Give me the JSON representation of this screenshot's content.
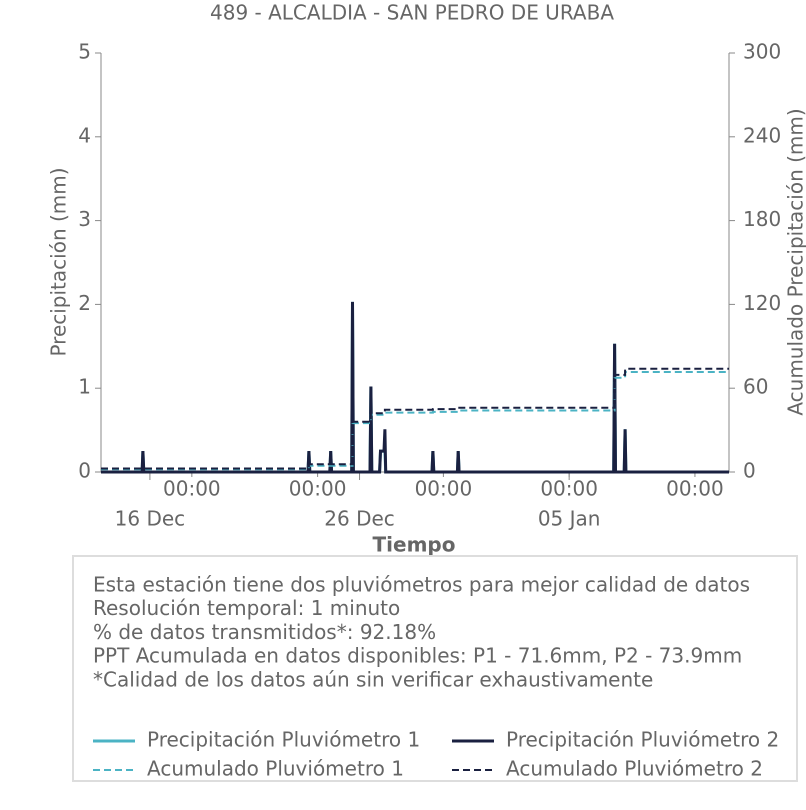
{
  "chart_data": {
    "type": "line",
    "title": "489 - ALCALDIA - SAN PEDRO DE URABA",
    "xlabel": "Tiempo",
    "ylabel": "Precipitación (mm)",
    "y2label": "Acumulado Precipitación (mm)",
    "x": [
      "13 Dec 16:00",
      "15 Dec 15:00",
      "15 Dec 16:00",
      "15 Dec 17:00",
      "23 Dec 13:00",
      "23 Dec 14:00",
      "23 Dec 15:00",
      "24 Dec 14:00",
      "24 Dec 15:00",
      "24 Dec 16:00",
      "25 Dec 15:00",
      "25 Dec 16:00",
      "25 Dec 17:00",
      "26 Dec 12:00",
      "26 Dec 13:00",
      "26 Dec 14:00",
      "26 Dec 23:00",
      "27 Dec 00:00",
      "27 Dec 04:00",
      "27 Dec 05:00",
      "27 Dec 06:00",
      "29 Dec 11:00",
      "29 Dec 12:00",
      "29 Dec 13:00",
      "30 Dec 16:00",
      "30 Dec 17:00",
      "30 Dec 18:00",
      "07 Jan 03:00",
      "07 Jan 04:00",
      "07 Jan 05:00",
      "07 Jan 15:00",
      "07 Jan 16:00",
      "07 Jan 17:00",
      "12 Jan 15:00"
    ],
    "xlim": [
      "13 Dec 16:00",
      "12 Jan 15:00"
    ],
    "xticks": [
      {
        "value": "18 Dec 00:00",
        "label": "00:00"
      },
      {
        "value": "24 Dec 00:00",
        "label": "00:00"
      },
      {
        "value": "30 Dec 00:00",
        "label": "00:00"
      },
      {
        "value": "05 Jan 00:00",
        "label": "00:00"
      },
      {
        "value": "11 Jan 00:00",
        "label": "00:00"
      }
    ],
    "xticks_major": [
      {
        "value": "16 Dec 00:00",
        "label": "16 Dec"
      },
      {
        "value": "26 Dec 00:00",
        "label": "26 Dec"
      },
      {
        "value": "05 Jan 00:00",
        "label": "05 Jan"
      }
    ],
    "ylim": [
      0,
      5
    ],
    "yticks": [
      0,
      1,
      2,
      3,
      4,
      5
    ],
    "y2lim": [
      0,
      300
    ],
    "y2ticks": [
      0,
      60,
      120,
      180,
      240,
      300
    ],
    "series": [
      {
        "name": "Precipitación Pluviómetro 1",
        "color": "#4bb3c4",
        "dash": false,
        "values": [
          0,
          0,
          0.25,
          0,
          0,
          0.25,
          0,
          0,
          0.25,
          0,
          0,
          2.03,
          0,
          0,
          1.02,
          0,
          0,
          0.25,
          0.25,
          0.25,
          0,
          0,
          0.25,
          0,
          0,
          0.25,
          0,
          0,
          1.53,
          0,
          0,
          0.51,
          0,
          0
        ]
      },
      {
        "name": "Precipitación Pluviómetro 2",
        "color": "#1a2040",
        "dash": false,
        "values": [
          0,
          0,
          0.25,
          0,
          0,
          0.25,
          0,
          0,
          0.25,
          0,
          0,
          2.03,
          0,
          0,
          1.02,
          0,
          0,
          0.25,
          0.25,
          0.51,
          0,
          0,
          0.25,
          0,
          0,
          0.25,
          0,
          0,
          1.53,
          0,
          0,
          0.51,
          0,
          0
        ]
      },
      {
        "name": "Acumulado Pluviómetro 1",
        "color": "#4bb3c4",
        "dash": true,
        "axis": "y2",
        "drawstyle": "steps-post",
        "values": [
          2,
          2,
          2,
          2,
          2,
          4.5,
          4.5,
          4.5,
          4.5,
          4.5,
          4.5,
          35,
          35,
          35,
          41,
          41,
          41,
          41,
          41,
          42.5,
          42.5,
          42.5,
          43,
          43,
          43,
          44,
          44,
          44,
          67.5,
          67.5,
          67.5,
          71.6,
          71.6,
          71.6
        ]
      },
      {
        "name": "Acumulado Pluviómetro 2",
        "color": "#1a2040",
        "dash": true,
        "axis": "y2",
        "drawstyle": "steps-post",
        "values": [
          2.5,
          2.5,
          2.5,
          2.5,
          2.5,
          5.5,
          5.5,
          5.5,
          5.5,
          5.5,
          5.5,
          36,
          36,
          36,
          42,
          42,
          42,
          42,
          42,
          44.5,
          44.5,
          44.5,
          45,
          45,
          45,
          46,
          46,
          46,
          69.5,
          69.5,
          69.5,
          73.9,
          73.9,
          73.9
        ]
      }
    ],
    "notes": [
      "Esta estación tiene dos pluviómetros para mejor calidad de datos",
      "Resolución temporal: 1 minuto",
      "% de datos transmitidos*: 92.18%",
      "PPT Acumulada en datos disponibles: P1 - 71.6mm, P2 - 73.9mm",
      "*Calidad de los datos aún sin verificar exhaustivamente"
    ]
  }
}
